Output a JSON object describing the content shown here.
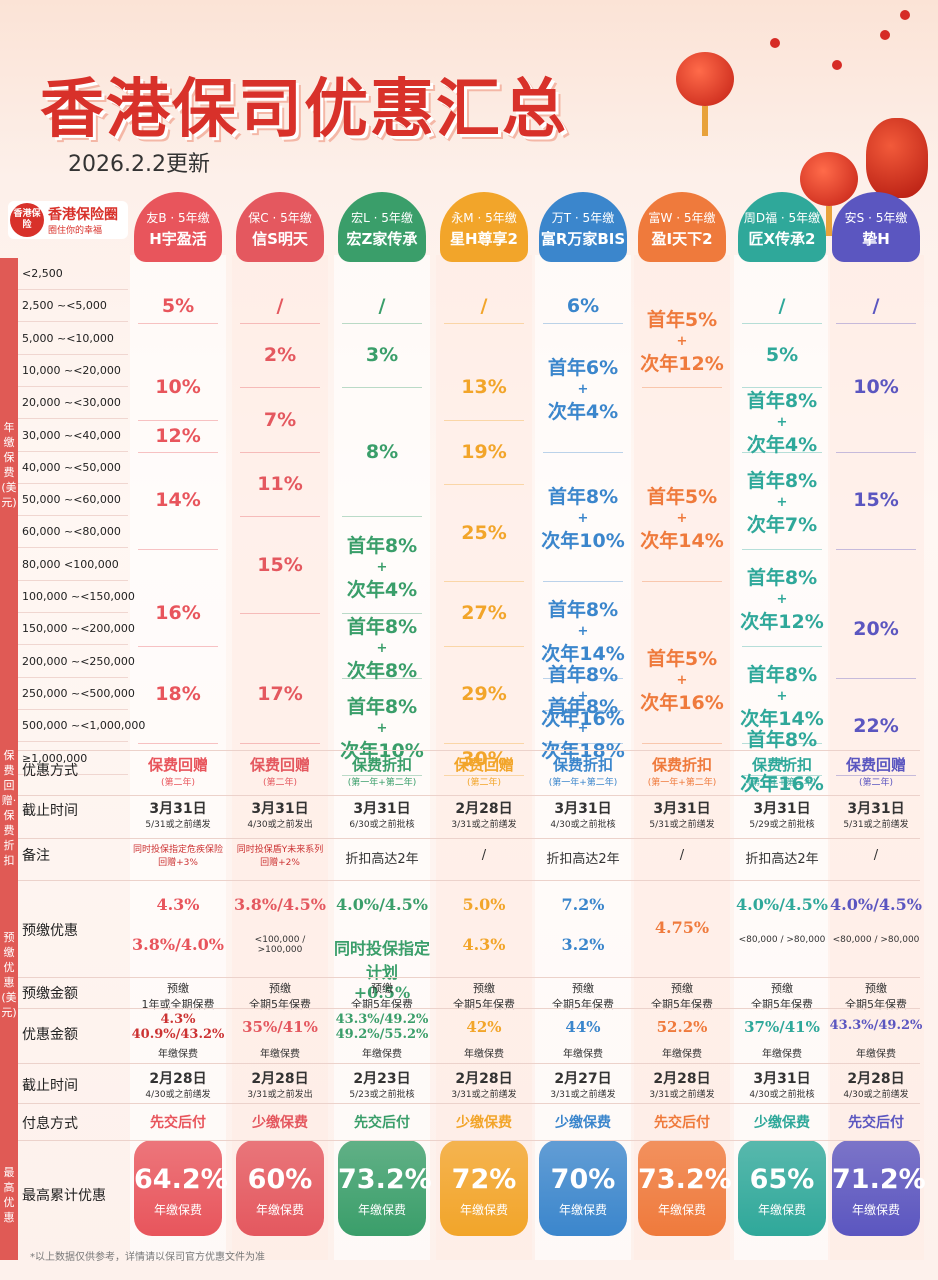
{
  "header": {
    "title": "香港保司优惠汇总",
    "date": "2026.2.2更新"
  },
  "logo": {
    "mark": "香港保险",
    "name": "香港保险圈",
    "slogan": "圈住你的幸福"
  },
  "left_labels": {
    "premium": "年缴保费(美元)",
    "rebate": "保费回赠·保费折扣",
    "prepay": "预缴优惠(美元)",
    "max": "最高优惠"
  },
  "bands": [
    "<2,500",
    "2,500   ~<5,000",
    "5,000   ~<10,000",
    "10,000  ~<20,000",
    "20,000  ~<30,000",
    "30,000  ~<40,000",
    "40,000  ~<50,000",
    "50,000  ~<60,000",
    "60,000  ~<80,000",
    "80,000  <100,000",
    "100,000 ~<150,000",
    "150,000 ~<200,000",
    "200,000 ~<250,000",
    "250,000 ~<500,000",
    "500,000 ~<1,000,000",
    "≥1,000,000"
  ],
  "row_labels": [
    "优惠方式",
    "截止时间",
    "备注",
    "预缴优惠",
    "预缴金额",
    "优惠金额",
    "截止时间",
    "付息方式",
    "最高累计优惠"
  ],
  "colors": {
    "c1": "#e8555c",
    "c2": "#e4585f",
    "c3": "#3a9e6a",
    "c4": "#f2a52a",
    "c5": "#3b86cc",
    "c6": "#ef7a3c",
    "c7": "#2fa89a",
    "c8": "#5b56c0"
  },
  "columns": [
    {
      "company": "友B · 5年缴",
      "product": "H宇盈活",
      "color": "#e8555c",
      "rates": [
        "5%",
        "10%",
        "12%",
        "14%",
        "16%",
        "18%"
      ],
      "method": "保费回赠",
      "method_sub": "(第二年)",
      "deadline": "3月31日",
      "deadline_sub": "5/31或之前缮发",
      "note": "同时投保指定危疾保险\n回赠+3%",
      "prepay": "4.3%",
      "prepay_extra": "3.8%/4.0%",
      "prepay_amount": "预缴\n1年或全期保费",
      "saving": "4.3%\n40.9%/43.2%",
      "saving_unit": "年缴保费",
      "deadline2": "2月28日",
      "deadline2_sub": "4/30或之前缮发",
      "pay": "先交后付",
      "max": "64.2%",
      "max_unit": "年缴保费"
    },
    {
      "company": "保C · 5年缴",
      "product": "信S明天",
      "color": "#e4585f",
      "rates": [
        "/",
        "2%",
        "7%",
        "11%",
        "15%",
        "17%"
      ],
      "method": "保费回赠",
      "method_sub": "(第二年)",
      "deadline": "3月31日",
      "deadline_sub": "4/30或之前发出",
      "note": "同时投保盾Y未来系列\n回赠+2%",
      "prepay": "3.8%/4.5%",
      "prepay_extra": "<100,000 / >100,000",
      "prepay_amount": "预缴\n全期5年保费",
      "saving": "35%/41%",
      "saving_unit": "年缴保费",
      "deadline2": "2月28日",
      "deadline2_sub": "3/31或之前发出",
      "pay": "少缴保费",
      "max": "60%",
      "max_unit": "年缴保费"
    },
    {
      "company": "宏L · 5年缴",
      "product": "宏Z家传承",
      "color": "#3a9e6a",
      "rates": [
        "/",
        "3%",
        "8%",
        "首年8%+次年4%",
        "首年8%+次年8%",
        "首年8%+次年10%"
      ],
      "method": "保费折扣",
      "method_sub": "(第一年+第二年)",
      "deadline": "3月31日",
      "deadline_sub": "6/30或之前批核",
      "note": "折扣高达2年",
      "prepay": "4.0%/4.5%",
      "prepay_extra": "同时投保指定计划\n+0.5%",
      "prepay_amount": "预缴\n全期5年保费",
      "saving": "43.3%/49.2%\n49.2%/55.2%",
      "saving_unit": "年缴保费",
      "deadline2": "2月23日",
      "deadline2_sub": "5/23或之前批核",
      "pay": "先交后付",
      "max": "73.2%",
      "max_unit": "年缴保费"
    },
    {
      "company": "永M · 5年缴",
      "product": "星H尊享2",
      "color": "#f2a52a",
      "rates": [
        "/",
        "13%",
        "19%",
        "25%",
        "27%",
        "29%",
        "30%"
      ],
      "method": "保费回赠",
      "method_sub": "(第二年)",
      "deadline": "2月28日",
      "deadline_sub": "3/31或之前缮发",
      "note": "/",
      "prepay": "5.0%",
      "prepay_extra": "4.3%",
      "prepay_amount": "预缴\n全期5年保费",
      "saving": "42%",
      "saving_unit": "年缴保费",
      "deadline2": "2月28日",
      "deadline2_sub": "3/31或之前缮发",
      "pay": "少缴保费",
      "max": "72%",
      "max_unit": "年缴保费"
    },
    {
      "company": "万T · 5年缴",
      "product": "富R万家BIS",
      "color": "#3b86cc",
      "rates": [
        "6%",
        "首年6%+次年4%",
        "首年8%+次年10%",
        "首年8%+次年14%",
        "首年8%+次年16%",
        "首年8%+次年18%"
      ],
      "method": "保费折扣",
      "method_sub": "(第一年+第二年)",
      "deadline": "3月31日",
      "deadline_sub": "4/30或之前批核",
      "note": "折扣高达2年",
      "prepay": "7.2%",
      "prepay_extra": "3.2%",
      "prepay_amount": "预缴\n全期5年保费",
      "saving": "44%",
      "saving_unit": "年缴保费",
      "deadline2": "2月27日",
      "deadline2_sub": "3/31或之前缮发",
      "pay": "少缴保费",
      "max": "70%",
      "max_unit": "年缴保费"
    },
    {
      "company": "富W · 5年缴",
      "product": "盈I天下2",
      "color": "#ef7a3c",
      "rates": [
        "首年5%+次年12%",
        "首年5%+次年14%",
        "首年5%+次年16%"
      ],
      "method": "保费折扣",
      "method_sub": "(第一年+第二年)",
      "deadline": "3月31日",
      "deadline_sub": "5/31或之前缮发",
      "note": "/",
      "prepay": "4.75%",
      "prepay_extra": "",
      "prepay_amount": "预缴\n全期5年保费",
      "saving": "52.2%",
      "saving_unit": "年缴保费",
      "deadline2": "2月28日",
      "deadline2_sub": "3/31或之前缮发",
      "pay": "先交后付",
      "max": "73.2%",
      "max_unit": "年缴保费"
    },
    {
      "company": "周D福 · 5年缴",
      "product": "匠X传承2",
      "color": "#2fa89a",
      "rates": [
        "/",
        "5%",
        "首年8%+次年4%",
        "首年8%+次年7%",
        "首年8%+次年12%",
        "首年8%+次年14%",
        "首年8%+次年16%"
      ],
      "method": "保费折扣",
      "method_sub": "(第一年+第二年)",
      "deadline": "3月31日",
      "deadline_sub": "5/29或之前批核",
      "note": "折扣高达2年",
      "prepay": "4.0%/4.5%",
      "prepay_extra": "<80,000 / >80,000",
      "prepay_amount": "预缴\n全期5年保费",
      "saving": "37%/41%",
      "saving_unit": "年缴保费",
      "deadline2": "3月31日",
      "deadline2_sub": "4/30或之前批核",
      "pay": "少缴保费",
      "max": "65%",
      "max_unit": "年缴保费"
    },
    {
      "company": "安S · 5年缴",
      "product": "挚H",
      "color": "#5b56c0",
      "rates": [
        "/",
        "10%",
        "15%",
        "20%",
        "22%"
      ],
      "method": "保费回赠",
      "method_sub": "(第二年)",
      "deadline": "3月31日",
      "deadline_sub": "5/31或之前缮发",
      "note": "/",
      "prepay": "4.0%/4.5%",
      "prepay_extra": "<80,000 / >80,000",
      "prepay_amount": "预缴\n全期5年保费",
      "saving": "43.3%/49.2%",
      "saving_unit": "年缴保费",
      "deadline2": "2月28日",
      "deadline2_sub": "4/30或之前缮发",
      "pay": "先交后付",
      "max": "71.2%",
      "max_unit": "年缴保费"
    }
  ],
  "footnote": "*以上数据仅供参考，详情请以保司官方优惠文件为准"
}
